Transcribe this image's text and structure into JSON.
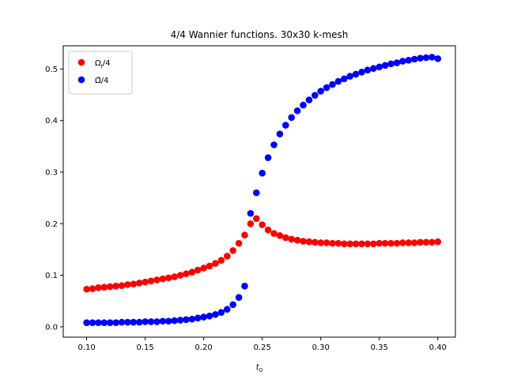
{
  "chart_data": {
    "type": "scatter",
    "title": "4/4 Wannier functions. 30x30 k-mesh",
    "xlabel": "t₀",
    "ylabel": "",
    "xlim": [
      0.08,
      0.415
    ],
    "ylim": [
      -0.02,
      0.545
    ],
    "xticks": [
      "0.10",
      "0.15",
      "0.20",
      "0.25",
      "0.30",
      "0.35",
      "0.40"
    ],
    "yticks": [
      "0.0",
      "0.1",
      "0.2",
      "0.3",
      "0.4",
      "0.5"
    ],
    "grid": false,
    "legend_position": "top-left",
    "series": [
      {
        "name": "Ωᵢ/4",
        "color": "#ff0000",
        "x": [
          0.1,
          0.105,
          0.11,
          0.115,
          0.12,
          0.125,
          0.13,
          0.135,
          0.14,
          0.145,
          0.15,
          0.155,
          0.16,
          0.165,
          0.17,
          0.175,
          0.18,
          0.185,
          0.19,
          0.195,
          0.2,
          0.205,
          0.21,
          0.215,
          0.22,
          0.225,
          0.23,
          0.235,
          0.24,
          0.245,
          0.25,
          0.255,
          0.26,
          0.265,
          0.27,
          0.275,
          0.28,
          0.285,
          0.29,
          0.295,
          0.3,
          0.305,
          0.31,
          0.315,
          0.32,
          0.325,
          0.33,
          0.335,
          0.34,
          0.345,
          0.35,
          0.355,
          0.36,
          0.365,
          0.37,
          0.375,
          0.38,
          0.385,
          0.39,
          0.395,
          0.4
        ],
        "y": [
          0.073,
          0.074,
          0.076,
          0.077,
          0.078,
          0.079,
          0.08,
          0.082,
          0.083,
          0.085,
          0.087,
          0.089,
          0.091,
          0.093,
          0.095,
          0.097,
          0.1,
          0.103,
          0.106,
          0.11,
          0.114,
          0.118,
          0.123,
          0.129,
          0.137,
          0.148,
          0.162,
          0.178,
          0.2,
          0.21,
          0.198,
          0.188,
          0.181,
          0.177,
          0.173,
          0.17,
          0.168,
          0.166,
          0.165,
          0.164,
          0.163,
          0.163,
          0.162,
          0.162,
          0.161,
          0.161,
          0.161,
          0.161,
          0.161,
          0.161,
          0.162,
          0.162,
          0.162,
          0.162,
          0.163,
          0.163,
          0.163,
          0.164,
          0.164,
          0.164,
          0.165
        ]
      },
      {
        "name": "Ω̃/4",
        "color": "#0000ff",
        "x": [
          0.1,
          0.105,
          0.11,
          0.115,
          0.12,
          0.125,
          0.13,
          0.135,
          0.14,
          0.145,
          0.15,
          0.155,
          0.16,
          0.165,
          0.17,
          0.175,
          0.18,
          0.185,
          0.19,
          0.195,
          0.2,
          0.205,
          0.21,
          0.215,
          0.22,
          0.225,
          0.23,
          0.235,
          0.24,
          0.245,
          0.25,
          0.255,
          0.26,
          0.265,
          0.27,
          0.275,
          0.28,
          0.285,
          0.29,
          0.295,
          0.3,
          0.305,
          0.31,
          0.315,
          0.32,
          0.325,
          0.33,
          0.335,
          0.34,
          0.345,
          0.35,
          0.355,
          0.36,
          0.365,
          0.37,
          0.375,
          0.38,
          0.385,
          0.39,
          0.395,
          0.4
        ],
        "y": [
          0.008,
          0.008,
          0.008,
          0.008,
          0.008,
          0.008,
          0.009,
          0.009,
          0.009,
          0.009,
          0.01,
          0.01,
          0.01,
          0.011,
          0.011,
          0.012,
          0.013,
          0.014,
          0.015,
          0.017,
          0.019,
          0.021,
          0.024,
          0.028,
          0.034,
          0.043,
          0.057,
          0.079,
          0.22,
          0.26,
          0.298,
          0.328,
          0.353,
          0.374,
          0.391,
          0.406,
          0.419,
          0.43,
          0.44,
          0.449,
          0.457,
          0.464,
          0.47,
          0.476,
          0.481,
          0.486,
          0.49,
          0.494,
          0.498,
          0.501,
          0.504,
          0.507,
          0.51,
          0.512,
          0.515,
          0.517,
          0.519,
          0.521,
          0.522,
          0.523,
          0.52
        ]
      }
    ]
  }
}
